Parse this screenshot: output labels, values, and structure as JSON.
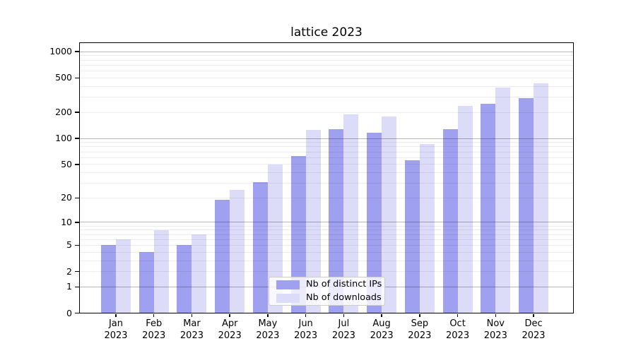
{
  "title": "lattice 2023",
  "chart_data": {
    "type": "bar",
    "title": "lattice 2023",
    "categories": [
      "Jan 2023",
      "Feb 2023",
      "Mar 2023",
      "Apr 2023",
      "May 2023",
      "Jun 2023",
      "Jul 2023",
      "Aug 2023",
      "Sep 2023",
      "Oct 2023",
      "Nov 2023",
      "Dec 2023"
    ],
    "series": [
      {
        "name": "Nb of distinct IPs",
        "color": "#a0a0f0",
        "values": [
          5,
          4,
          5,
          19,
          31,
          62,
          128,
          117,
          56,
          128,
          252,
          290
        ]
      },
      {
        "name": "Nb of downloads",
        "color": "#dcdcf9",
        "values": [
          6,
          8,
          7,
          25,
          50,
          126,
          191,
          180,
          87,
          240,
          390,
          435
        ]
      }
    ],
    "xlabel": "",
    "ylabel": "",
    "yscale": "log1p",
    "yticks": [
      0,
      1,
      2,
      5,
      10,
      20,
      50,
      100,
      200,
      500,
      1000
    ],
    "ylim": [
      0,
      1250
    ],
    "grid": true,
    "grid_over_bars": true,
    "legend_position": "lower center",
    "background": "#ffffff",
    "major_grid_values": [
      1,
      10,
      100,
      1000
    ]
  }
}
